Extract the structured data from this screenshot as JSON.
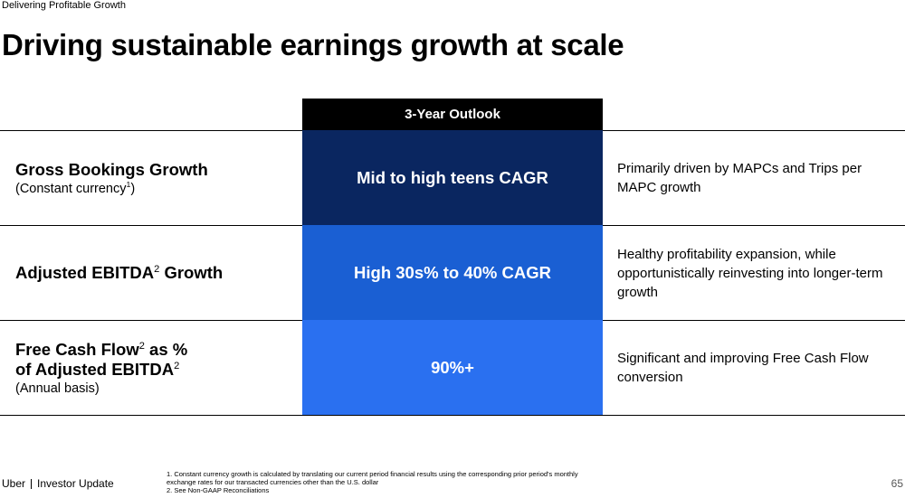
{
  "header": {
    "section_label": "Delivering Profitable Growth",
    "title": "Driving sustainable earnings growth at scale"
  },
  "table": {
    "outlook_header": "3-Year Outlook",
    "rows": [
      {
        "metric_line1": "Gross Bookings Growth",
        "metric_sub": "(Constant currency",
        "metric_sub_sup": "1",
        "metric_sub_end": ")",
        "outlook": "Mid to high teens CAGR",
        "outlook_color": "#0a2660",
        "description": "Primarily driven by MAPCs and Trips per MAPC growth"
      },
      {
        "metric_line1": "Adjusted EBITDA",
        "metric_line1_sup": "2",
        "metric_line1_end": " Growth",
        "outlook": "High 30s% to 40% CAGR",
        "outlook_color": "#1a5fd3",
        "description": "Healthy profitability expansion, while opportunistically reinvesting into longer-term growth"
      },
      {
        "metric_line1": "Free Cash Flow",
        "metric_line1_sup": "2",
        "metric_line1_end": " as %",
        "metric_line2": "of Adjusted EBITDA",
        "metric_line2_sup": "2",
        "metric_sub": "(Annual basis)",
        "outlook": "90%+",
        "outlook_color": "#2a70f0",
        "description": "Significant and improving Free Cash Flow conversion"
      }
    ]
  },
  "footer": {
    "brand": "Uber",
    "brand_suffix": "Investor Update",
    "footnote_1": "1. Constant currency growth is calculated by translating our current period financial results using the corresponding prior period's monthly exchange rates for our transacted currencies other than the U.S. dollar",
    "footnote_2": "2. See Non-GAAP Reconciliations",
    "page_number": "65"
  }
}
